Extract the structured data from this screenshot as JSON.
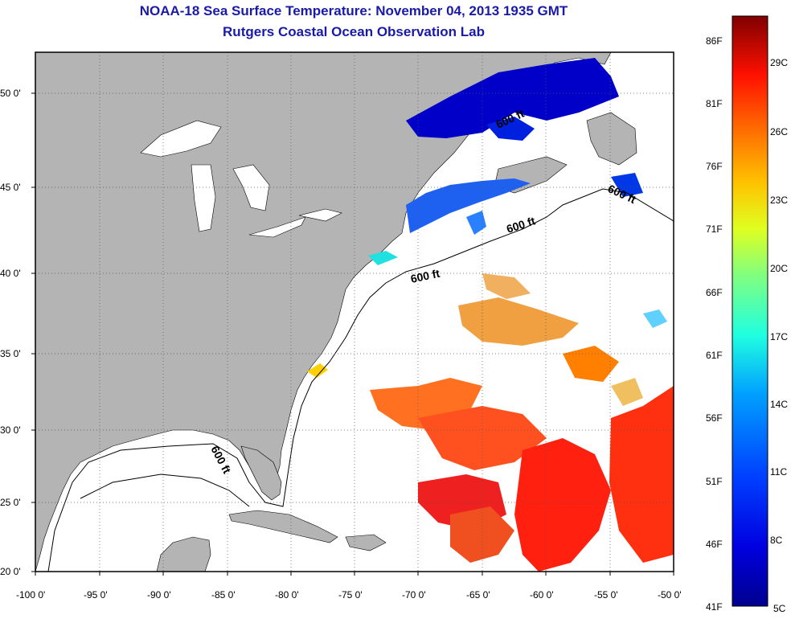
{
  "title": "NOAA-18 Sea Surface Temperature:  November 04, 2013 1935 GMT",
  "subtitle": "Rutgers Coastal Ocean Observation Lab",
  "map": {
    "lon_range": [
      -100,
      -50
    ],
    "lat_range": [
      20,
      52.5
    ],
    "grid": "dotted",
    "land_color": "#b4b4b4",
    "ocean_color": "#ffffff",
    "lon_ticks": [
      "-100 0'",
      "-95 0'",
      "-90 0'",
      "-85 0'",
      "-80 0'",
      "-75 0'",
      "-70 0'",
      "-65 0'",
      "-60 0'",
      "-55 0'",
      "-50 0'"
    ],
    "lat_ticks": [
      "50 0'",
      "45 0'",
      "40 0'",
      "35 0'",
      "30 0'",
      "25 0'",
      "20 0'"
    ],
    "isobath_labels": [
      "600 ft",
      "600 ft",
      "600 ft",
      "600 ft",
      "600 ft"
    ]
  },
  "colorbar": {
    "fahrenheit_labels": [
      "86F",
      "81F",
      "76F",
      "71F",
      "66F",
      "61F",
      "56F",
      "51F",
      "46F",
      "41F"
    ],
    "celsius_labels": [
      "29C",
      "26C",
      "23C",
      "20C",
      "17C",
      "14C",
      "11C",
      "8C",
      "5C"
    ],
    "colors": [
      "#800000",
      "#c00000",
      "#ff2000",
      "#ff7000",
      "#ffb000",
      "#ffff00",
      "#a0ff50",
      "#30ffd0",
      "#00c0ff",
      "#0070ff",
      "#0020ff",
      "#0000c0",
      "#00008f"
    ]
  }
}
